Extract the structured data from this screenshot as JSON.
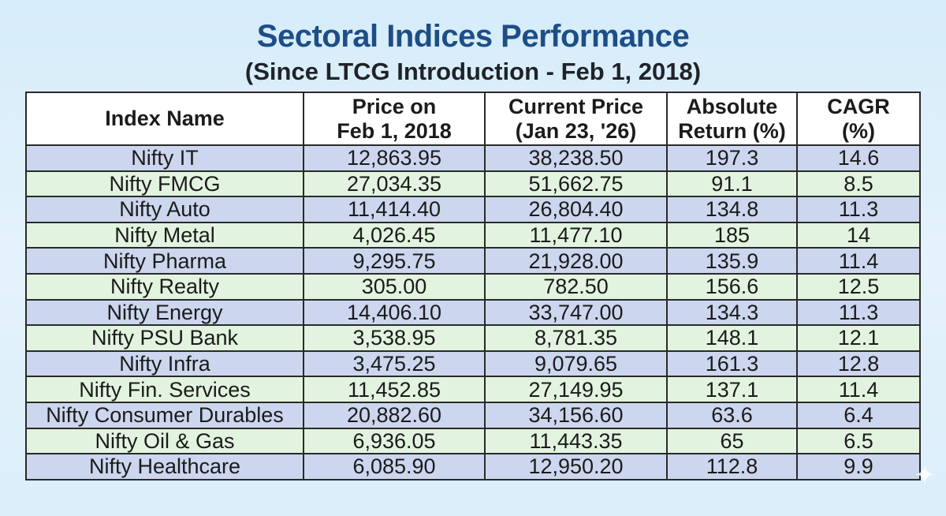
{
  "title": "Sectoral Indices Performance",
  "subtitle": "(Since LTCG Introduction - Feb 1, 2018)",
  "colors": {
    "title": "#1d4e86",
    "row_odd": "#ccd6ee",
    "row_even": "#e2f4df",
    "header_bg": "#ffffff",
    "background": "#d6ecfa"
  },
  "chart_data": {
    "type": "table",
    "title": "Sectoral Indices Performance",
    "subtitle": "(Since LTCG Introduction - Feb 1, 2018)",
    "columns": [
      {
        "key": "name",
        "lines": [
          "Index Name"
        ]
      },
      {
        "key": "price_2018",
        "lines": [
          "Price on",
          "Feb 1, 2018"
        ]
      },
      {
        "key": "price_current",
        "lines": [
          "Current Price",
          "(Jan 23, '26)"
        ]
      },
      {
        "key": "abs_return",
        "lines": [
          "Absolute",
          "Return (%)"
        ]
      },
      {
        "key": "cagr",
        "lines": [
          "CAGR",
          "(%)"
        ]
      }
    ],
    "rows": [
      [
        "Nifty IT",
        "12,863.95",
        "38,238.50",
        "197.3",
        "14.6"
      ],
      [
        "Nifty FMCG",
        "27,034.35",
        "51,662.75",
        "91.1",
        "8.5"
      ],
      [
        "Nifty Auto",
        "11,414.40",
        "26,804.40",
        "134.8",
        "11.3"
      ],
      [
        "Nifty Metal",
        "4,026.45",
        "11,477.10",
        "185",
        "14"
      ],
      [
        "Nifty Pharma",
        "9,295.75",
        "21,928.00",
        "135.9",
        "11.4"
      ],
      [
        "Nifty Realty",
        "305.00",
        "782.50",
        "156.6",
        "12.5"
      ],
      [
        "Nifty Energy",
        "14,406.10",
        "33,747.00",
        "134.3",
        "11.3"
      ],
      [
        "Nifty PSU Bank",
        "3,538.95",
        "8,781.35",
        "148.1",
        "12.1"
      ],
      [
        "Nifty Infra",
        "3,475.25",
        "9,079.65",
        "161.3",
        "12.8"
      ],
      [
        "Nifty Fin. Services",
        "11,452.85",
        "27,149.95",
        "137.1",
        "11.4"
      ],
      [
        "Nifty Consumer Durables",
        "20,882.60",
        "34,156.60",
        "63.6",
        "6.4"
      ],
      [
        "Nifty Oil & Gas",
        "6,936.05",
        "11,443.35",
        "65",
        "6.5"
      ],
      [
        "Nifty Healthcare",
        "6,085.90",
        "12,950.20",
        "112.8",
        "9.9"
      ]
    ]
  },
  "icons": {
    "sparkle": "sparkle-icon"
  }
}
